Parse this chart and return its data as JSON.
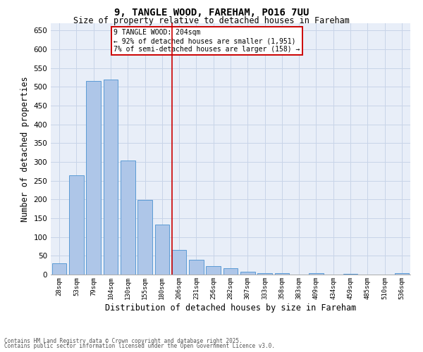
{
  "title": "9, TANGLE WOOD, FAREHAM, PO16 7UU",
  "subtitle": "Size of property relative to detached houses in Fareham",
  "xlabel": "Distribution of detached houses by size in Fareham",
  "ylabel": "Number of detached properties",
  "categories": [
    "28sqm",
    "53sqm",
    "79sqm",
    "104sqm",
    "130sqm",
    "155sqm",
    "180sqm",
    "206sqm",
    "231sqm",
    "256sqm",
    "282sqm",
    "307sqm",
    "333sqm",
    "358sqm",
    "383sqm",
    "409sqm",
    "434sqm",
    "459sqm",
    "485sqm",
    "510sqm",
    "536sqm"
  ],
  "values": [
    30,
    265,
    515,
    520,
    303,
    198,
    134,
    65,
    40,
    22,
    16,
    8,
    4,
    4,
    0,
    3,
    0,
    1,
    0,
    0,
    3
  ],
  "bar_color": "#aec6e8",
  "bar_edge_color": "#5b9bd5",
  "vline_x_index": 7,
  "vline_color": "#cc0000",
  "annotation_title": "9 TANGLE WOOD: 204sqm",
  "annotation_line1": "← 92% of detached houses are smaller (1,951)",
  "annotation_line2": "7% of semi-detached houses are larger (158) →",
  "annotation_box_color": "#cc0000",
  "ylim": [
    0,
    670
  ],
  "yticks": [
    0,
    50,
    100,
    150,
    200,
    250,
    300,
    350,
    400,
    450,
    500,
    550,
    600,
    650
  ],
  "grid_color": "#c8d4e8",
  "bg_color": "#e8eef8",
  "footer1": "Contains HM Land Registry data © Crown copyright and database right 2025.",
  "footer2": "Contains public sector information licensed under the Open Government Licence v3.0."
}
